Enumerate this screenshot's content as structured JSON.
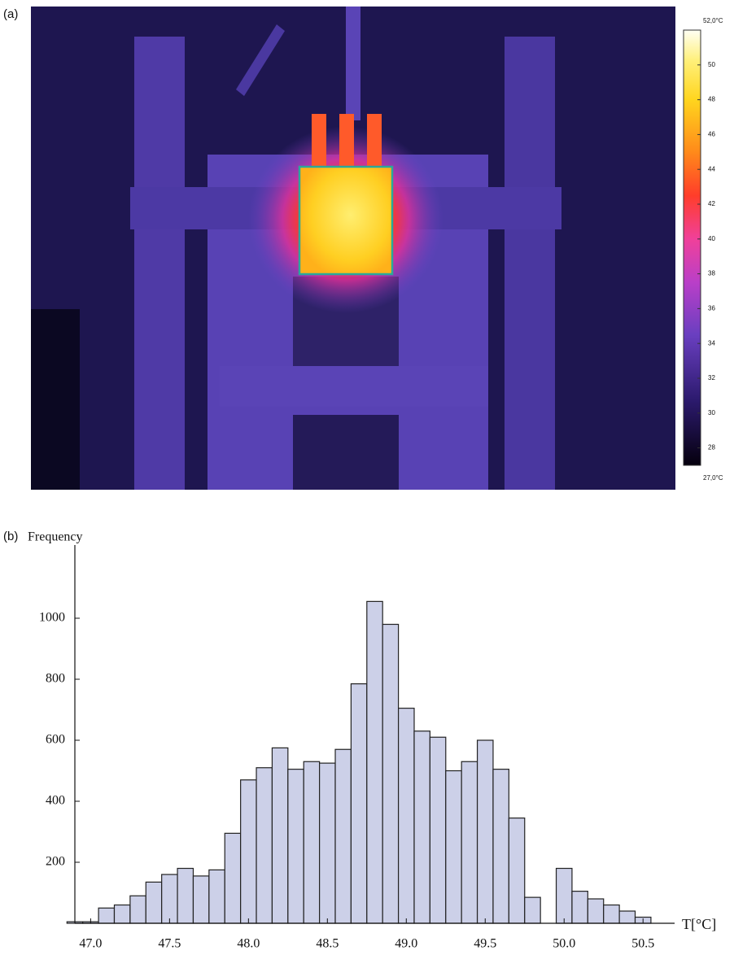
{
  "panel_a": {
    "label": "(a)",
    "colorbar": {
      "max_label": "52,0°C",
      "min_label": "27,0°C",
      "lim": [
        27,
        52
      ],
      "ticks": [
        28,
        30,
        32,
        34,
        36,
        38,
        40,
        42,
        44,
        46,
        48,
        50
      ]
    }
  },
  "chart_data": {
    "type": "histogram",
    "panel_label": "(b)",
    "y_label": "Frequency",
    "x_label": "T[°C]",
    "bins": [
      46.85,
      46.95,
      47.05,
      47.15,
      47.25,
      47.35,
      47.45,
      47.55,
      47.65,
      47.75,
      47.85,
      47.95,
      48.05,
      48.15,
      48.25,
      48.35,
      48.45,
      48.55,
      48.65,
      48.75,
      48.85,
      48.95,
      49.05,
      49.15,
      49.25,
      49.35,
      49.45,
      49.55,
      49.65,
      49.75,
      49.85,
      49.95,
      50.05,
      50.15,
      50.25,
      50.35,
      50.45,
      50.55
    ],
    "values": [
      5,
      5,
      50,
      60,
      90,
      135,
      160,
      180,
      155,
      175,
      295,
      470,
      510,
      575,
      505,
      530,
      525,
      570,
      785,
      1055,
      980,
      705,
      630,
      610,
      500,
      530,
      600,
      505,
      345,
      85,
      0,
      180,
      105,
      80,
      60,
      40,
      20
    ],
    "color": "#ccd0e8",
    "xlim": [
      46.9,
      50.7
    ],
    "ylim": [
      0,
      1240
    ],
    "xticks": [
      {
        "value": 47,
        "label": "47.0"
      },
      {
        "value": 47.5,
        "label": "47.5"
      },
      {
        "value": 48,
        "label": "48.0"
      },
      {
        "value": 48.5,
        "label": "48.5"
      },
      {
        "value": 49,
        "label": "49.0"
      },
      {
        "value": 49.5,
        "label": "49.5"
      },
      {
        "value": 50,
        "label": "50.0"
      },
      {
        "value": 50.5,
        "label": "50.5"
      }
    ],
    "yticks": [
      200,
      400,
      600,
      800,
      1000
    ]
  }
}
